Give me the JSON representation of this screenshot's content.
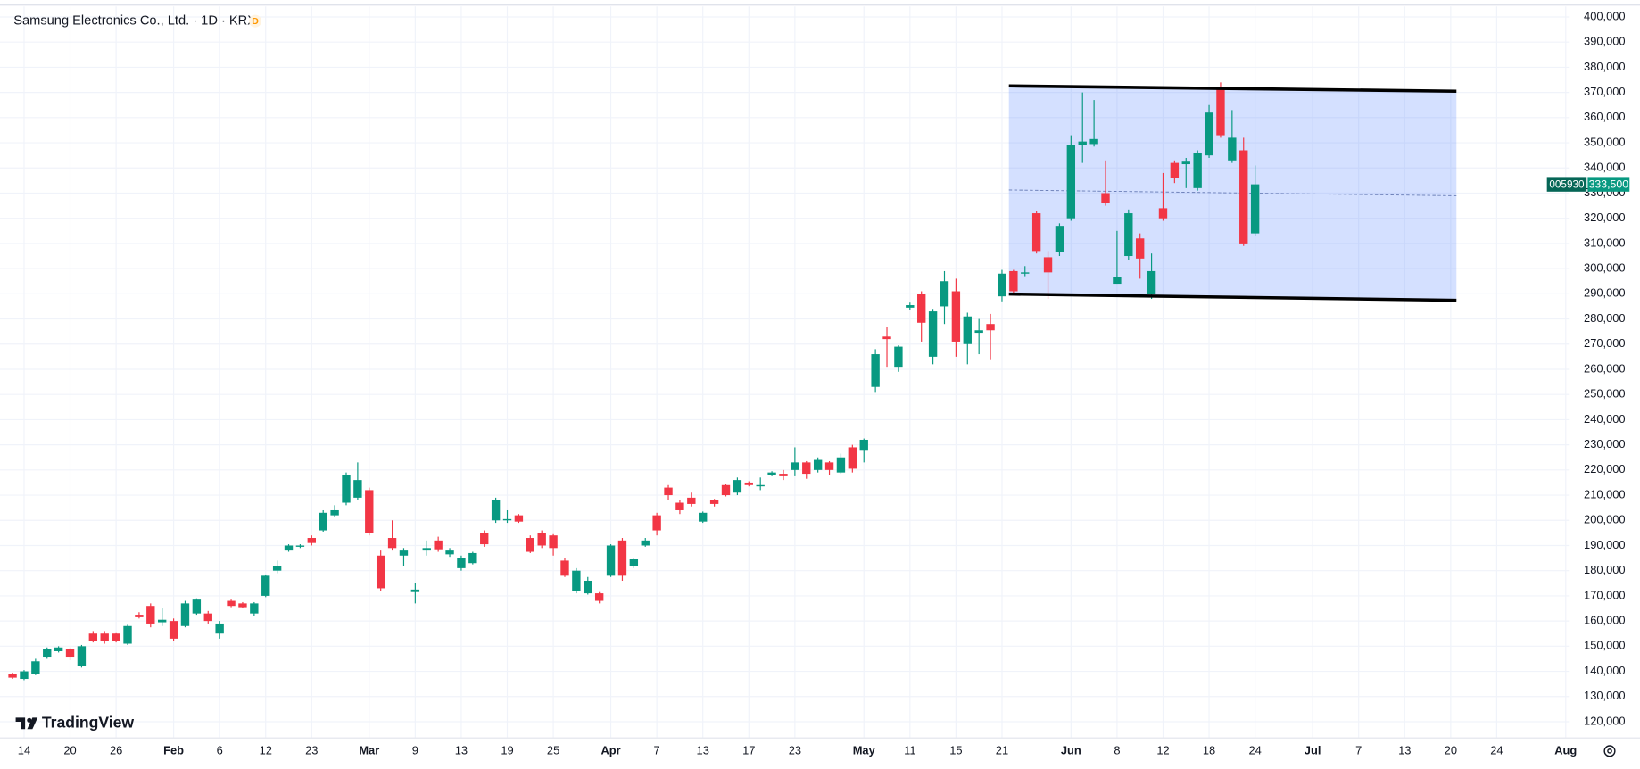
{
  "chart_data": {
    "type": "candlestick",
    "title": "Samsung Electronics Co., Ltd. · 1D · KRX",
    "badge": "D",
    "branding": "TradingView",
    "up_color": "#089981",
    "down_color": "#f23645",
    "grid": true,
    "categories": [
      null,
      "14",
      null,
      null,
      null,
      "20",
      null,
      null,
      null,
      "26",
      null,
      null,
      null,
      null,
      "Feb",
      null,
      null,
      null,
      "6",
      null,
      null,
      null,
      "12",
      null,
      null,
      null,
      "23",
      null,
      null,
      null,
      null,
      "Mar",
      null,
      null,
      null,
      "9",
      null,
      null,
      null,
      "13",
      null,
      null,
      null,
      "19",
      null,
      null,
      null,
      "25",
      null,
      null,
      null,
      null,
      "Apr",
      null,
      null,
      null,
      "7",
      null,
      null,
      null,
      "13",
      null,
      null,
      null,
      "17",
      null,
      null,
      null,
      "23",
      null,
      null,
      null,
      null,
      null,
      "May",
      null,
      null,
      null,
      "11",
      null,
      null,
      null,
      "15",
      null,
      null,
      null,
      "21",
      null,
      null,
      null,
      null,
      null,
      "Jun",
      null,
      null,
      null,
      "8",
      null,
      null,
      null,
      "12",
      null,
      null,
      null,
      "18",
      null,
      null,
      null,
      "24",
      null,
      null,
      null,
      null,
      "Jul",
      null,
      null,
      null,
      "7",
      null,
      null,
      null,
      "13",
      null,
      null,
      null,
      "20",
      null,
      null,
      null,
      "24",
      null,
      null,
      null,
      null,
      null,
      "Aug"
    ],
    "open": [
      139000,
      137000,
      139000,
      145500,
      148000,
      149000,
      142000,
      155000,
      155000,
      155000,
      151000,
      162500,
      166000,
      159500,
      160000,
      158000,
      163000,
      163000,
      155000,
      168000,
      167000,
      163000,
      170000,
      180000,
      188000,
      189500,
      193000,
      196000,
      202000,
      207000,
      209000,
      212000,
      186000,
      193000,
      186000,
      171500,
      188000,
      192000,
      186500,
      181000,
      183000,
      195000,
      200000,
      200000,
      202000,
      193000,
      195000,
      194000,
      184000,
      172000,
      171000,
      171000,
      178000,
      192000,
      182000,
      190000,
      202000,
      213000,
      207000,
      209000,
      199500,
      208000,
      214000,
      211000,
      215000,
      213500,
      218000,
      218500,
      220000,
      223000,
      220000,
      223000,
      219000,
      229000,
      228000,
      253000,
      273000,
      261000,
      284500,
      290000,
      265000,
      285000,
      291000,
      270000,
      274500,
      278000,
      289000,
      299000,
      298000,
      322000,
      304500,
      306500,
      320000,
      349000,
      349500,
      330000,
      294000,
      305000,
      312000,
      290000,
      324000,
      342000,
      341500,
      332000,
      345000,
      372000,
      343000,
      347000,
      314000,
      null,
      null,
      null,
      null,
      null,
      null,
      null,
      null,
      null,
      null,
      null,
      null,
      null,
      null,
      null,
      null,
      null,
      null,
      null,
      null,
      null,
      null,
      null,
      null,
      null,
      null,
      null
    ],
    "high": [
      139500,
      140500,
      145000,
      149500,
      150000,
      149500,
      150500,
      156000,
      156000,
      155500,
      158500,
      163500,
      167000,
      165000,
      161000,
      168000,
      169000,
      164000,
      160000,
      168500,
      167500,
      167500,
      178500,
      184000,
      190500,
      190500,
      194000,
      204000,
      206000,
      219000,
      223000,
      213000,
      188000,
      200000,
      189000,
      175000,
      192000,
      193500,
      189000,
      186000,
      187500,
      196000,
      209000,
      204000,
      202500,
      194000,
      196000,
      194500,
      185000,
      181000,
      177500,
      171500,
      190500,
      193000,
      185000,
      193000,
      203000,
      214000,
      208000,
      211000,
      203500,
      208500,
      214500,
      217000,
      215500,
      217000,
      219500,
      220000,
      229000,
      223500,
      225000,
      223500,
      226500,
      230000,
      232500,
      268000,
      277000,
      269500,
      286500,
      291000,
      284000,
      299000,
      296000,
      282500,
      280000,
      282000,
      299500,
      299500,
      301000,
      323000,
      307000,
      318000,
      353000,
      370000,
      367000,
      343000,
      315000,
      323500,
      314000,
      306000,
      338000,
      343000,
      344000,
      347000,
      365000,
      374000,
      363000,
      352000,
      341000,
      null,
      null,
      null,
      null,
      null,
      null,
      null,
      null,
      null,
      null,
      null,
      null,
      null,
      null,
      null,
      null,
      null,
      null,
      null,
      null,
      null,
      null,
      null,
      null,
      null,
      null,
      null
    ],
    "low": [
      137000,
      136500,
      138500,
      145000,
      147500,
      144500,
      141500,
      151500,
      151000,
      151500,
      150500,
      161000,
      157500,
      158000,
      152000,
      157500,
      162500,
      159000,
      153000,
      165500,
      165000,
      162000,
      169500,
      179000,
      187500,
      189000,
      190000,
      195500,
      201500,
      206000,
      208000,
      194000,
      172000,
      188000,
      182000,
      167000,
      186000,
      187500,
      185500,
      180000,
      182500,
      189500,
      199000,
      199000,
      199000,
      187000,
      189000,
      186000,
      177500,
      171000,
      170500,
      167000,
      177500,
      176000,
      181000,
      189500,
      194000,
      208000,
      202500,
      205500,
      199000,
      205500,
      209500,
      210000,
      213500,
      212000,
      217500,
      216000,
      217500,
      216500,
      219000,
      218000,
      218500,
      219000,
      223000,
      251000,
      261000,
      259000,
      283500,
      271000,
      262000,
      278000,
      265000,
      262000,
      266000,
      264000,
      287000,
      290000,
      297000,
      306000,
      288000,
      305000,
      319000,
      342000,
      348500,
      325000,
      294000,
      303500,
      296000,
      288000,
      319000,
      334000,
      332000,
      331000,
      344000,
      352000,
      342000,
      309000,
      313000,
      null,
      null,
      null,
      null,
      null,
      null,
      null,
      null,
      null,
      null,
      null,
      null,
      null,
      null,
      null,
      null,
      null,
      null,
      null,
      null,
      null,
      null,
      null,
      null,
      null,
      null,
      null
    ],
    "close": [
      137500,
      140000,
      144000,
      149000,
      149500,
      145500,
      150000,
      152000,
      152000,
      152000,
      158000,
      161500,
      159000,
      160500,
      153000,
      167000,
      168500,
      160000,
      159000,
      166000,
      165500,
      167000,
      178000,
      182000,
      190000,
      190000,
      191000,
      203000,
      204000,
      218000,
      216000,
      195000,
      173000,
      189000,
      188000,
      172500,
      189000,
      188500,
      188000,
      185000,
      187000,
      190500,
      208000,
      200500,
      199500,
      187500,
      190000,
      189000,
      178000,
      180000,
      176000,
      168000,
      190000,
      178000,
      184500,
      192000,
      196000,
      210000,
      204000,
      206500,
      203000,
      206500,
      210000,
      216000,
      214000,
      214000,
      219000,
      217500,
      223000,
      218500,
      224000,
      220000,
      225000,
      220500,
      232000,
      266000,
      272000,
      269000,
      285500,
      278500,
      283000,
      295000,
      271000,
      281000,
      275500,
      275500,
      298000,
      291000,
      298500,
      307000,
      298500,
      317000,
      349000,
      350500,
      351500,
      326000,
      296500,
      322000,
      304000,
      299000,
      320000,
      336000,
      342500,
      346000,
      362000,
      353000,
      352000,
      310000,
      333500,
      null,
      null,
      null,
      null,
      null,
      null,
      null,
      null,
      null,
      null,
      null,
      null,
      null,
      null,
      null,
      null,
      null,
      null,
      null,
      null,
      null,
      null,
      null,
      null,
      null,
      null,
      null
    ],
    "ylim": [
      113750,
      406650
    ],
    "yticks": [
      {
        "value": 120000,
        "label": "120,000"
      },
      {
        "value": 130000,
        "label": "130,000"
      },
      {
        "value": 140000,
        "label": "140,000"
      },
      {
        "value": 150000,
        "label": "150,000"
      },
      {
        "value": 160000,
        "label": "160,000"
      },
      {
        "value": 170000,
        "label": "170,000"
      },
      {
        "value": 180000,
        "label": "180,000"
      },
      {
        "value": 190000,
        "label": "190,000"
      },
      {
        "value": 200000,
        "label": "200,000"
      },
      {
        "value": 210000,
        "label": "210,000"
      },
      {
        "value": 220000,
        "label": "220,000"
      },
      {
        "value": 230000,
        "label": "230,000"
      },
      {
        "value": 240000,
        "label": "240,000"
      },
      {
        "value": 250000,
        "label": "250,000"
      },
      {
        "value": 260000,
        "label": "260,000"
      },
      {
        "value": 270000,
        "label": "270,000"
      },
      {
        "value": 280000,
        "label": "280,000"
      },
      {
        "value": 290000,
        "label": "290,000"
      },
      {
        "value": 300000,
        "label": "300,000"
      },
      {
        "value": 310000,
        "label": "310,000"
      },
      {
        "value": 320000,
        "label": "320,000"
      },
      {
        "value": 330000,
        "label": "330,000"
      },
      {
        "value": 340000,
        "label": "340,000"
      },
      {
        "value": 350000,
        "label": "350,000"
      },
      {
        "value": 360000,
        "label": "360,000"
      },
      {
        "value": 370000,
        "label": "370,000"
      },
      {
        "value": 380000,
        "label": "380,000"
      },
      {
        "value": 390000,
        "label": "390,000"
      },
      {
        "value": 400000,
        "label": "400,000"
      }
    ],
    "last_price": {
      "symbol": "005930",
      "value": 333500,
      "label": "333,500"
    },
    "channel": {
      "x": [
        86.6,
        125.5
      ],
      "upper": [
        372600,
        370500
      ],
      "lower": [
        289900,
        287400
      ]
    }
  }
}
